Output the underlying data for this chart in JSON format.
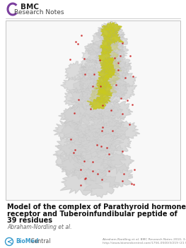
{
  "bg_color": "#ffffff",
  "header_bmc_text": "BMC",
  "header_subtitle": "Research Notes",
  "header_arc_color": "#7b3f9e",
  "title_line1": "Model of the complex of Parathyroid hormone-2",
  "title_line2": "receptor and Tuberoinfundibular peptide of",
  "title_line3": "39 residues",
  "author_text": "Abraham-Nordling et al.",
  "biomed_bold": "BioMed",
  "biomed_regular": " Central",
  "footer_small1": "Abraham-Nordling et al. BMC Research Notes 2010, 3:219",
  "footer_small2": "http://www.biomedcentral.com/1756-0500/3/219 (21 October 2010)",
  "image_border_color": "#bbbbbb",
  "protein_gray": "#d2d2d2",
  "protein_yellow": "#c8c820",
  "protein_red": "#cc2222"
}
